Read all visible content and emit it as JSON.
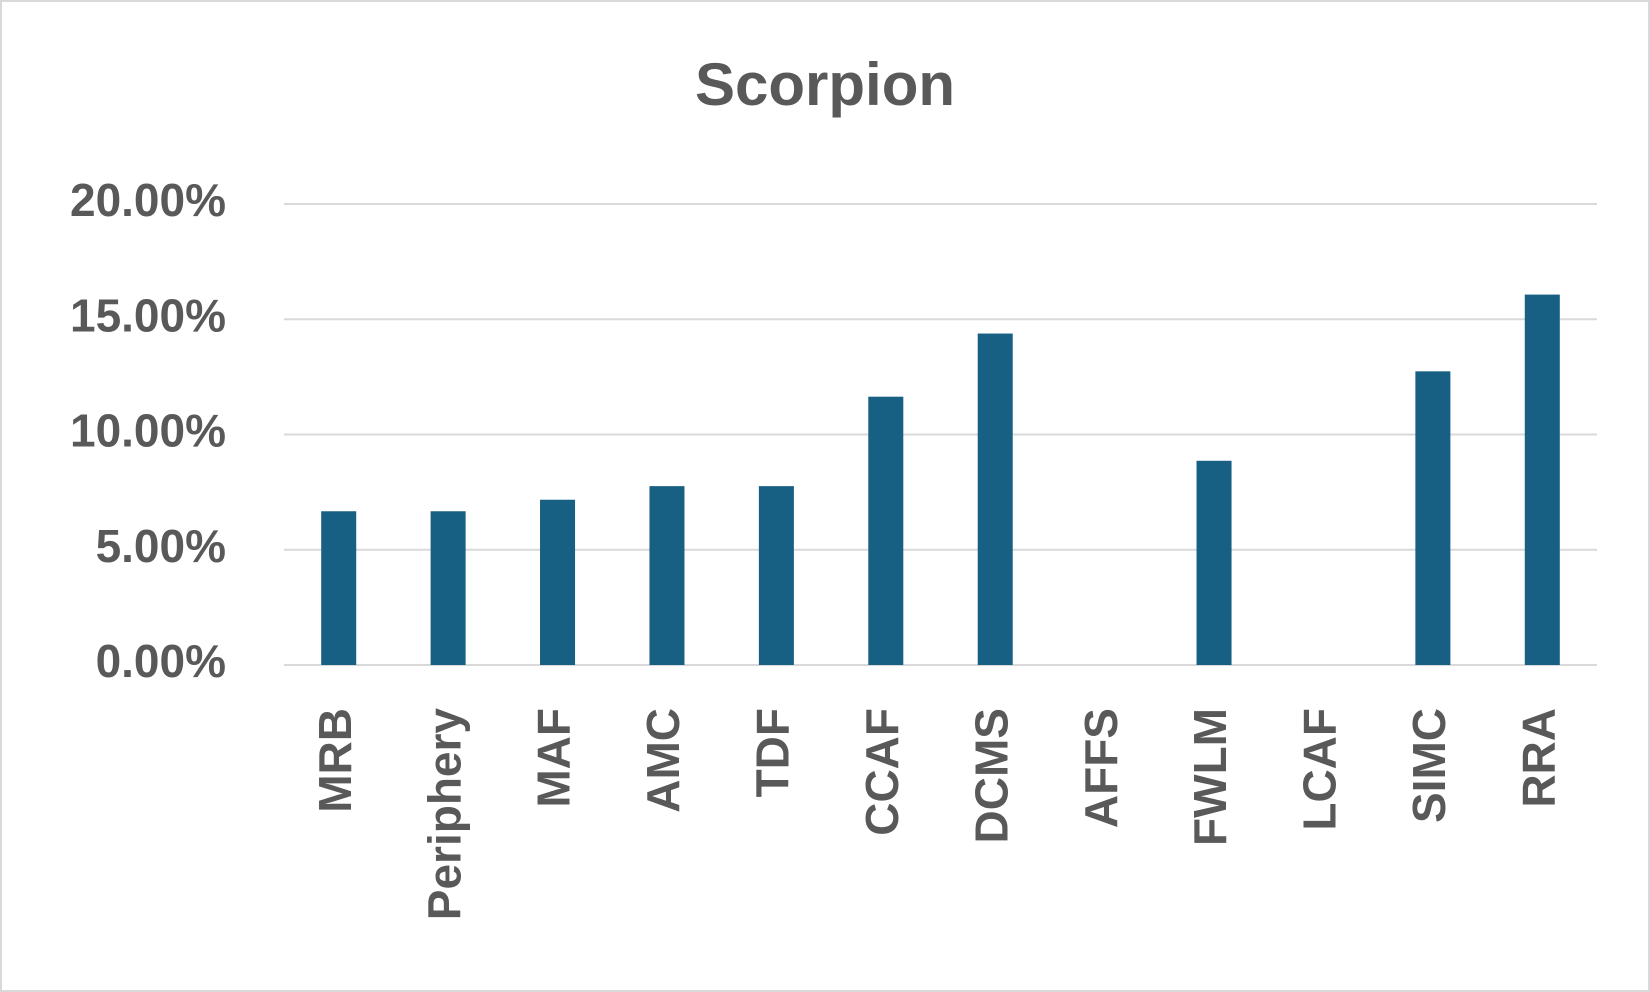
{
  "chart_data": {
    "type": "bar",
    "title": "Scorpion",
    "categories": [
      "MRB",
      "Periphery",
      "MAF",
      "AMC",
      "TDF",
      "CCAF",
      "DCMS",
      "AFFS",
      "FWLM",
      "LCAF",
      "SIMC",
      "RRA"
    ],
    "values": [
      6.67,
      6.67,
      7.17,
      7.76,
      7.76,
      11.64,
      14.38,
      0,
      8.86,
      0,
      12.74,
      16.07
    ],
    "color": "#175f83",
    "ylim": [
      0,
      20
    ],
    "yticks": [
      {
        "value": 0,
        "label": "0.00%"
      },
      {
        "value": 5,
        "label": "5.00%"
      },
      {
        "value": 10,
        "label": "10.00%"
      },
      {
        "value": 15,
        "label": "15.00%"
      },
      {
        "value": 20,
        "label": "20.00%"
      }
    ],
    "grid": true
  }
}
